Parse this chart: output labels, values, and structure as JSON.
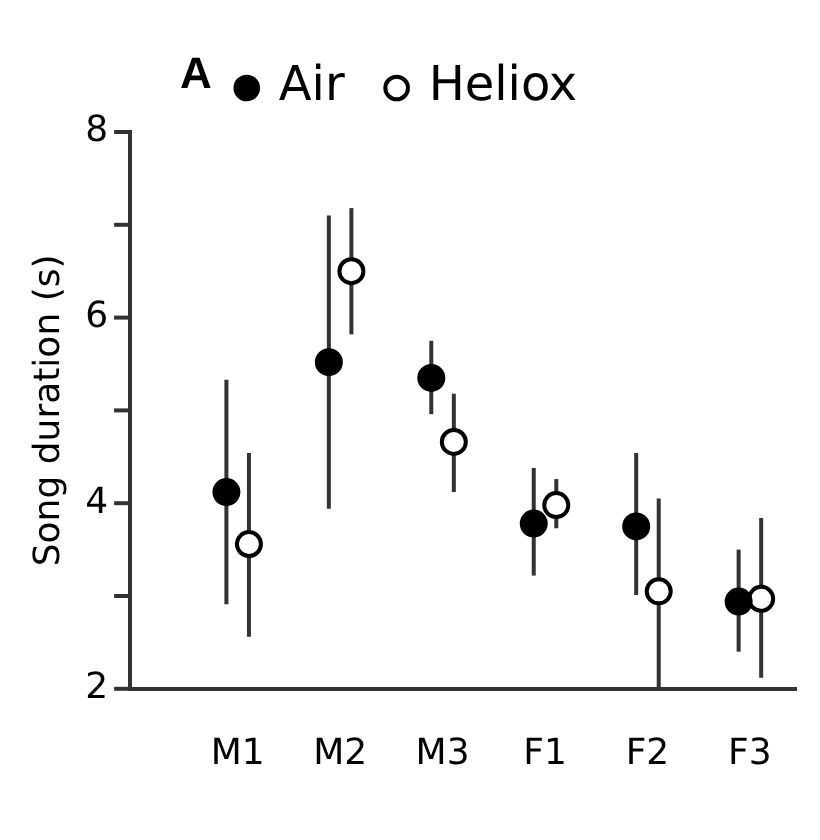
{
  "chart_data": {
    "type": "scatter",
    "title": "A",
    "ylabel": "Song duration (s)",
    "categories": [
      "M1",
      "M2",
      "M3",
      "F1",
      "F2",
      "F3"
    ],
    "series": [
      {
        "name": "Air",
        "color": "#000000",
        "values": [
          4.12,
          5.52,
          5.35,
          3.78,
          3.75,
          2.94
        ],
        "errors": [
          [
            2.91,
            5.33
          ],
          [
            3.94,
            7.1
          ],
          [
            4.96,
            5.75
          ],
          [
            3.22,
            4.38
          ],
          [
            3.01,
            4.54
          ],
          [
            2.4,
            3.5
          ]
        ]
      },
      {
        "name": "Heliox",
        "color": "#000000",
        "values": [
          3.56,
          6.5,
          4.66,
          3.98,
          3.05,
          2.97
        ],
        "errors": [
          [
            2.56,
            4.54
          ],
          [
            5.82,
            7.18
          ],
          [
            4.12,
            5.18
          ],
          [
            3.73,
            4.26
          ],
          [
            2.02,
            4.05
          ],
          [
            2.12,
            3.84
          ]
        ]
      }
    ],
    "ylim": [
      2,
      8
    ],
    "yticks": [
      2,
      {
        "value": 3,
        "label": null
      },
      4,
      {
        "value": 5,
        "label": null
      },
      6,
      {
        "value": 7,
        "label": null
      },
      8
    ],
    "grid": false,
    "legend": "top",
    "marker": "circle"
  }
}
